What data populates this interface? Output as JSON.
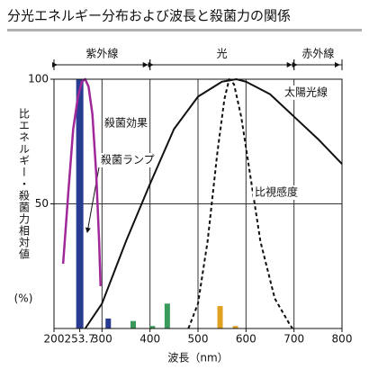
{
  "chart_data": {
    "type": "line",
    "title": "分光エネルギー分布および波長と殺菌力の関係",
    "x_label": "波長（nm）",
    "y_label": "比エネルギー・殺菌力相対値",
    "y_label_unit": "(%)",
    "xlim": [
      200,
      800
    ],
    "ylim": [
      0,
      100
    ],
    "xticks": [
      200,
      253.7,
      300,
      400,
      500,
      600,
      700,
      800
    ],
    "yticks": [
      50,
      100
    ],
    "grid": true,
    "regions": [
      {
        "label": "紫外線",
        "range": [
          200,
          400
        ]
      },
      {
        "label": "光",
        "range": [
          400,
          700
        ]
      },
      {
        "label": "赤外線",
        "range": [
          700,
          800
        ]
      }
    ],
    "series": [
      {
        "name": "殺菌ランプ",
        "type": "bar",
        "x": [
          253.7,
          313,
          365,
          405,
          436,
          546,
          578
        ],
        "values": [
          100,
          4,
          3,
          1,
          10,
          9,
          1
        ],
        "colors": [
          "#283c92",
          "#283c92",
          "#3a9a5a",
          "#3a9a5a",
          "#3a9a5a",
          "#e0a020",
          "#e0a020"
        ]
      },
      {
        "name": "殺菌効果",
        "type": "line",
        "color": "#a0289a",
        "x": [
          219,
          230,
          240,
          250,
          258,
          265,
          272,
          280,
          288,
          294,
          297
        ],
        "values": [
          26,
          55,
          80,
          93,
          99,
          100,
          97,
          86,
          62,
          35,
          17
        ]
      },
      {
        "name": "太陽光線",
        "type": "line",
        "color": "#111111",
        "x": [
          265,
          300,
          350,
          400,
          450,
          500,
          550,
          580,
          600,
          650,
          700,
          750,
          800
        ],
        "values": [
          0,
          10,
          35,
          58,
          80,
          93,
          99,
          100,
          99,
          94,
          85,
          76,
          66
        ]
      },
      {
        "name": "比視感度",
        "type": "line",
        "dashed": true,
        "color": "#111111",
        "x": [
          480,
          500,
          520,
          540,
          555,
          565,
          575,
          590,
          610,
          630,
          660,
          690,
          697
        ],
        "values": [
          0,
          10,
          35,
          70,
          92,
          100,
          98,
          85,
          60,
          35,
          12,
          2,
          0
        ]
      }
    ]
  }
}
